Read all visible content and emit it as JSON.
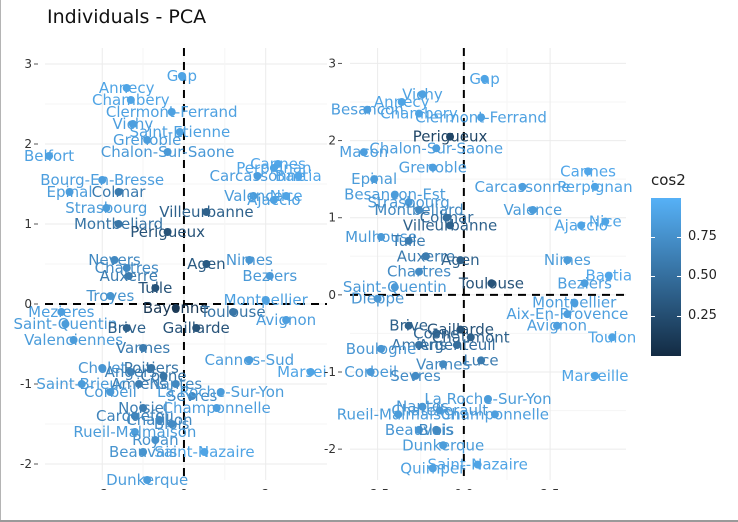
{
  "title": "Individuals - PCA",
  "legend": {
    "title": "cos2",
    "ticks": [
      0.75,
      0.5,
      0.25
    ],
    "tick_labels": [
      "0.75",
      "0.50",
      "0.25"
    ],
    "color_low": "#132B43",
    "color_high": "#56B1F7",
    "position": "right"
  },
  "chart_data": [
    {
      "type": "scatter",
      "xlim": [
        -3.4,
        3.5
      ],
      "ylim": [
        -2.2,
        3.2
      ],
      "xticks": [
        -2,
        0,
        2
      ],
      "xtick_labels": [
        "-2",
        "0",
        "2"
      ],
      "yticks": [
        -2,
        -1,
        0,
        1,
        2,
        3
      ],
      "ytick_labels": [
        "-2",
        "-1",
        "0",
        "1",
        "2",
        "3"
      ],
      "grid": true,
      "reference_lines": "dashed at x=0 and y=0",
      "points": [
        {
          "label": "Gap",
          "x": -0.05,
          "y": 2.85,
          "cos2": 0.9
        },
        {
          "label": "Annecy",
          "x": -1.4,
          "y": 2.7,
          "cos2": 0.9
        },
        {
          "label": "Chambery",
          "x": -1.3,
          "y": 2.55,
          "cos2": 0.9
        },
        {
          "label": "Clermont-Ferrand",
          "x": -0.3,
          "y": 2.4,
          "cos2": 0.88
        },
        {
          "label": "Vichy",
          "x": -1.25,
          "y": 2.25,
          "cos2": 0.86
        },
        {
          "label": "Saint-Etienne",
          "x": -0.1,
          "y": 2.15,
          "cos2": 0.88
        },
        {
          "label": "Grenoble",
          "x": -0.9,
          "y": 2.05,
          "cos2": 0.85
        },
        {
          "label": "Chalon-Sur-Saone",
          "x": -0.4,
          "y": 1.9,
          "cos2": 0.82
        },
        {
          "label": "Belfort",
          "x": -3.3,
          "y": 1.85,
          "cos2": 0.88
        },
        {
          "label": "Bourg-En-Bresse",
          "x": -2.0,
          "y": 1.55,
          "cos2": 0.86
        },
        {
          "label": "Epinal",
          "x": -2.8,
          "y": 1.4,
          "cos2": 0.85
        },
        {
          "label": "Colmar",
          "x": -1.6,
          "y": 1.4,
          "cos2": 0.6
        },
        {
          "label": "Strasbourg",
          "x": -1.9,
          "y": 1.2,
          "cos2": 0.84
        },
        {
          "label": "Villeurbanne",
          "x": 0.55,
          "y": 1.15,
          "cos2": 0.4
        },
        {
          "label": "Montbeliard",
          "x": -1.6,
          "y": 1.0,
          "cos2": 0.55
        },
        {
          "label": "Perigueux",
          "x": -0.4,
          "y": 0.9,
          "cos2": 0.3
        },
        {
          "label": "Carcassonne",
          "x": 1.8,
          "y": 1.6,
          "cos2": 0.86
        },
        {
          "label": "Cannes",
          "x": 2.3,
          "y": 1.75,
          "cos2": 0.92
        },
        {
          "label": "Perpignan",
          "x": 2.2,
          "y": 1.7,
          "cos2": 0.9
        },
        {
          "label": "Bastia",
          "x": 2.8,
          "y": 1.6,
          "cos2": 0.92
        },
        {
          "label": "Valence",
          "x": 1.7,
          "y": 1.35,
          "cos2": 0.84
        },
        {
          "label": "Ajaccio",
          "x": 2.2,
          "y": 1.3,
          "cos2": 0.88
        },
        {
          "label": "Nice",
          "x": 2.5,
          "y": 1.35,
          "cos2": 0.9
        },
        {
          "label": "Nimes",
          "x": 1.6,
          "y": 0.55,
          "cos2": 0.8
        },
        {
          "label": "Agen",
          "x": 0.55,
          "y": 0.5,
          "cos2": 0.35
        },
        {
          "label": "Beziers",
          "x": 2.1,
          "y": 0.35,
          "cos2": 0.82
        },
        {
          "label": "Nevers",
          "x": -1.7,
          "y": 0.55,
          "cos2": 0.7
        },
        {
          "label": "Chartres",
          "x": -1.4,
          "y": 0.45,
          "cos2": 0.72
        },
        {
          "label": "Auxerre",
          "x": -1.35,
          "y": 0.35,
          "cos2": 0.6
        },
        {
          "label": "Tulle",
          "x": -0.7,
          "y": 0.2,
          "cos2": 0.3
        },
        {
          "label": "Troyes",
          "x": -1.8,
          "y": 0.1,
          "cos2": 0.78
        },
        {
          "label": "Bayonne",
          "x": -0.2,
          "y": -0.05,
          "cos2": 0.1
        },
        {
          "label": "Montpellier",
          "x": 2.0,
          "y": 0.05,
          "cos2": 0.88
        },
        {
          "label": "Mezieres",
          "x": -3.0,
          "y": -0.1,
          "cos2": 0.86
        },
        {
          "label": "Toulouse",
          "x": 1.2,
          "y": -0.1,
          "cos2": 0.55
        },
        {
          "label": "Avignon",
          "x": 2.5,
          "y": -0.2,
          "cos2": 0.86
        },
        {
          "label": "Saint-Quentin",
          "x": -2.9,
          "y": -0.25,
          "cos2": 0.84
        },
        {
          "label": "Brive",
          "x": -1.4,
          "y": -0.3,
          "cos2": 0.4
        },
        {
          "label": "Gaillarde",
          "x": 0.3,
          "y": -0.3,
          "cos2": 0.3
        },
        {
          "label": "Valenciennes",
          "x": -2.7,
          "y": -0.45,
          "cos2": 0.84
        },
        {
          "label": "Vannes",
          "x": -1.0,
          "y": -0.55,
          "cos2": 0.6
        },
        {
          "label": "Marseille",
          "x": 3.1,
          "y": -0.85,
          "cos2": 0.9
        },
        {
          "label": "Cholet",
          "x": -2.0,
          "y": -0.8,
          "cos2": 0.8
        },
        {
          "label": "Angers",
          "x": -1.3,
          "y": -0.85,
          "cos2": 0.65
        },
        {
          "label": "Poitiers",
          "x": -0.8,
          "y": -0.8,
          "cos2": 0.55
        },
        {
          "label": "Cosne",
          "x": -0.5,
          "y": -0.9,
          "cos2": 0.55
        },
        {
          "label": "Cannes-Sud",
          "x": 1.6,
          "y": -0.7,
          "cos2": 0.85
        },
        {
          "label": "Amiens",
          "x": -1.1,
          "y": -1.0,
          "cos2": 0.62
        },
        {
          "label": "Saint-Brieuc",
          "x": -2.5,
          "y": -1.0,
          "cos2": 0.84
        },
        {
          "label": "Corbeil",
          "x": -1.8,
          "y": -1.1,
          "cos2": 0.82
        },
        {
          "label": "Nantes",
          "x": -0.2,
          "y": -1.0,
          "cos2": 0.7
        },
        {
          "label": "Sevres",
          "x": 0.2,
          "y": -1.15,
          "cos2": 0.72
        },
        {
          "label": "La Roche-Sur-Yon",
          "x": 0.9,
          "y": -1.1,
          "cos2": 0.84
        },
        {
          "label": "Noisiel",
          "x": -1.0,
          "y": -1.3,
          "cos2": 0.62
        },
        {
          "label": "Carquefou",
          "x": -1.2,
          "y": -1.4,
          "cos2": 0.66
        },
        {
          "label": "Chatillon",
          "x": -0.6,
          "y": -1.45,
          "cos2": 0.7
        },
        {
          "label": "Blois",
          "x": -0.3,
          "y": -1.5,
          "cos2": 0.72
        },
        {
          "label": "Champonnelle",
          "x": 0.8,
          "y": -1.3,
          "cos2": 0.86
        },
        {
          "label": "Rueil-Malmaison",
          "x": -1.2,
          "y": -1.6,
          "cos2": 0.84
        },
        {
          "label": "Royan",
          "x": -0.7,
          "y": -1.7,
          "cos2": 0.76
        },
        {
          "label": "Beauvais",
          "x": -1.0,
          "y": -1.85,
          "cos2": 0.78
        },
        {
          "label": "Saint-Nazaire",
          "x": 0.5,
          "y": -1.85,
          "cos2": 0.9
        },
        {
          "label": "Dunkerque",
          "x": -0.9,
          "y": -2.2,
          "cos2": 0.85
        },
        {
          "label": "Quimper",
          "x": -0.5,
          "y": -2.5,
          "cos2": 0.88
        }
      ]
    },
    {
      "type": "scatter",
      "xlim": [
        -3.3,
        4.7
      ],
      "ylim": [
        -2.4,
        3.2
      ],
      "xticks": [
        -2.5,
        0.0,
        2.5
      ],
      "xtick_labels": [
        "-2.5",
        "0.0",
        "2.5"
      ],
      "yticks": [
        -2,
        -1,
        0,
        1,
        2,
        3
      ],
      "ytick_labels": [
        "-2",
        "-1",
        "0",
        "1",
        "2",
        "3"
      ],
      "grid": true,
      "reference_lines": "dashed at x=0 and y=0",
      "points": [
        {
          "label": "Gap",
          "x": 0.6,
          "y": 2.8,
          "cos2": 0.9
        },
        {
          "label": "Vichy",
          "x": -1.2,
          "y": 2.6,
          "cos2": 0.88
        },
        {
          "label": "Annecy",
          "x": -1.8,
          "y": 2.5,
          "cos2": 0.9
        },
        {
          "label": "Besancon",
          "x": -2.8,
          "y": 2.4,
          "cos2": 0.86
        },
        {
          "label": "Chambery",
          "x": -1.3,
          "y": 2.35,
          "cos2": 0.9
        },
        {
          "label": "Clermont-Ferrand",
          "x": 0.5,
          "y": 2.3,
          "cos2": 0.88
        },
        {
          "label": "Perigueux",
          "x": -0.4,
          "y": 2.05,
          "cos2": 0.2
        },
        {
          "label": "Chalon-Sur-Saone",
          "x": -0.8,
          "y": 1.9,
          "cos2": 0.86
        },
        {
          "label": "Macon",
          "x": -2.9,
          "y": 1.85,
          "cos2": 0.86
        },
        {
          "label": "Grenoble",
          "x": -0.9,
          "y": 1.65,
          "cos2": 0.86
        },
        {
          "label": "Epinal",
          "x": -2.6,
          "y": 1.5,
          "cos2": 0.84
        },
        {
          "label": "Besancon-Est",
          "x": -2.0,
          "y": 1.3,
          "cos2": 0.84
        },
        {
          "label": "Strasbourg",
          "x": -1.6,
          "y": 1.2,
          "cos2": 0.82
        },
        {
          "label": "Montbeliard",
          "x": -1.3,
          "y": 1.1,
          "cos2": 0.7
        },
        {
          "label": "Colmar",
          "x": -0.5,
          "y": 1.0,
          "cos2": 0.5
        },
        {
          "label": "Villeurbanne",
          "x": -0.4,
          "y": 0.9,
          "cos2": 0.4
        },
        {
          "label": "Mulhouse",
          "x": -2.4,
          "y": 0.75,
          "cos2": 0.82
        },
        {
          "label": "Tulle",
          "x": -1.6,
          "y": 0.7,
          "cos2": 0.6
        },
        {
          "label": "Carcassonne",
          "x": 1.7,
          "y": 1.4,
          "cos2": 0.86
        },
        {
          "label": "Cannes",
          "x": 3.6,
          "y": 1.6,
          "cos2": 0.92
        },
        {
          "label": "Perpignan",
          "x": 3.8,
          "y": 1.4,
          "cos2": 0.9
        },
        {
          "label": "Valence",
          "x": 2.0,
          "y": 1.1,
          "cos2": 0.84
        },
        {
          "label": "Nice",
          "x": 4.1,
          "y": 0.95,
          "cos2": 0.9
        },
        {
          "label": "Ajaccio",
          "x": 3.4,
          "y": 0.9,
          "cos2": 0.9
        },
        {
          "label": "Nimes",
          "x": 3.0,
          "y": 0.45,
          "cos2": 0.84
        },
        {
          "label": "Auxerre",
          "x": -1.1,
          "y": 0.5,
          "cos2": 0.6
        },
        {
          "label": "Agen",
          "x": -0.1,
          "y": 0.45,
          "cos2": 0.4
        },
        {
          "label": "Chartres",
          "x": -1.3,
          "y": 0.3,
          "cos2": 0.72
        },
        {
          "label": "Bastia",
          "x": 4.2,
          "y": 0.25,
          "cos2": 0.92
        },
        {
          "label": "Beziers",
          "x": 3.5,
          "y": 0.15,
          "cos2": 0.86
        },
        {
          "label": "Toulouse",
          "x": 0.8,
          "y": 0.15,
          "cos2": 0.3
        },
        {
          "label": "Saint-Quentin",
          "x": -2.0,
          "y": 0.1,
          "cos2": 0.82
        },
        {
          "label": "Dieppe",
          "x": -2.5,
          "y": -0.05,
          "cos2": 0.8
        },
        {
          "label": "Montpellier",
          "x": 3.2,
          "y": -0.1,
          "cos2": 0.86
        },
        {
          "label": "Aix-En-Provence",
          "x": 3.0,
          "y": -0.25,
          "cos2": 0.86
        },
        {
          "label": "Avignon",
          "x": 2.7,
          "y": -0.4,
          "cos2": 0.86
        },
        {
          "label": "Toulon",
          "x": 4.3,
          "y": -0.55,
          "cos2": 0.9
        },
        {
          "label": "Gaillarde",
          "x": -0.1,
          "y": -0.45,
          "cos2": 0.3
        },
        {
          "label": "Brive",
          "x": -1.6,
          "y": -0.4,
          "cos2": 0.4
        },
        {
          "label": "Cosne",
          "x": -0.8,
          "y": -0.5,
          "cos2": 0.45
        },
        {
          "label": "Chaumont",
          "x": 0.2,
          "y": -0.55,
          "cos2": 0.4
        },
        {
          "label": "Amiens",
          "x": -1.3,
          "y": -0.65,
          "cos2": 0.55
        },
        {
          "label": "Boulogne",
          "x": -2.4,
          "y": -0.7,
          "cos2": 0.8
        },
        {
          "label": "Argenteuil",
          "x": -0.2,
          "y": -0.65,
          "cos2": 0.5
        },
        {
          "label": "Luce",
          "x": 0.5,
          "y": -0.85,
          "cos2": 0.6
        },
        {
          "label": "Vannes",
          "x": -0.6,
          "y": -0.9,
          "cos2": 0.7
        },
        {
          "label": "Corbeil",
          "x": -2.7,
          "y": -1.0,
          "cos2": 0.82
        },
        {
          "label": "Sevres",
          "x": -1.4,
          "y": -1.05,
          "cos2": 0.72
        },
        {
          "label": "Marseille",
          "x": 3.8,
          "y": -1.05,
          "cos2": 0.9
        },
        {
          "label": "La Roche-Sur-Yon",
          "x": 0.7,
          "y": -1.35,
          "cos2": 0.84
        },
        {
          "label": "Nantes",
          "x": -1.2,
          "y": -1.45,
          "cos2": 0.8
        },
        {
          "label": "Chatellerault",
          "x": -0.7,
          "y": -1.5,
          "cos2": 0.82
        },
        {
          "label": "Rueil-Malmaison",
          "x": -1.9,
          "y": -1.55,
          "cos2": 0.84
        },
        {
          "label": "Champonnelle",
          "x": 0.9,
          "y": -1.55,
          "cos2": 0.86
        },
        {
          "label": "Beauvais",
          "x": -1.3,
          "y": -1.75,
          "cos2": 0.8
        },
        {
          "label": "Blois",
          "x": -0.8,
          "y": -1.75,
          "cos2": 0.7
        },
        {
          "label": "Dunkerque",
          "x": -0.6,
          "y": -1.95,
          "cos2": 0.84
        },
        {
          "label": "Saint-Nazaire",
          "x": 0.4,
          "y": -2.2,
          "cos2": 0.9
        },
        {
          "label": "Quimper",
          "x": -0.9,
          "y": -2.25,
          "cos2": 0.88
        }
      ]
    }
  ]
}
